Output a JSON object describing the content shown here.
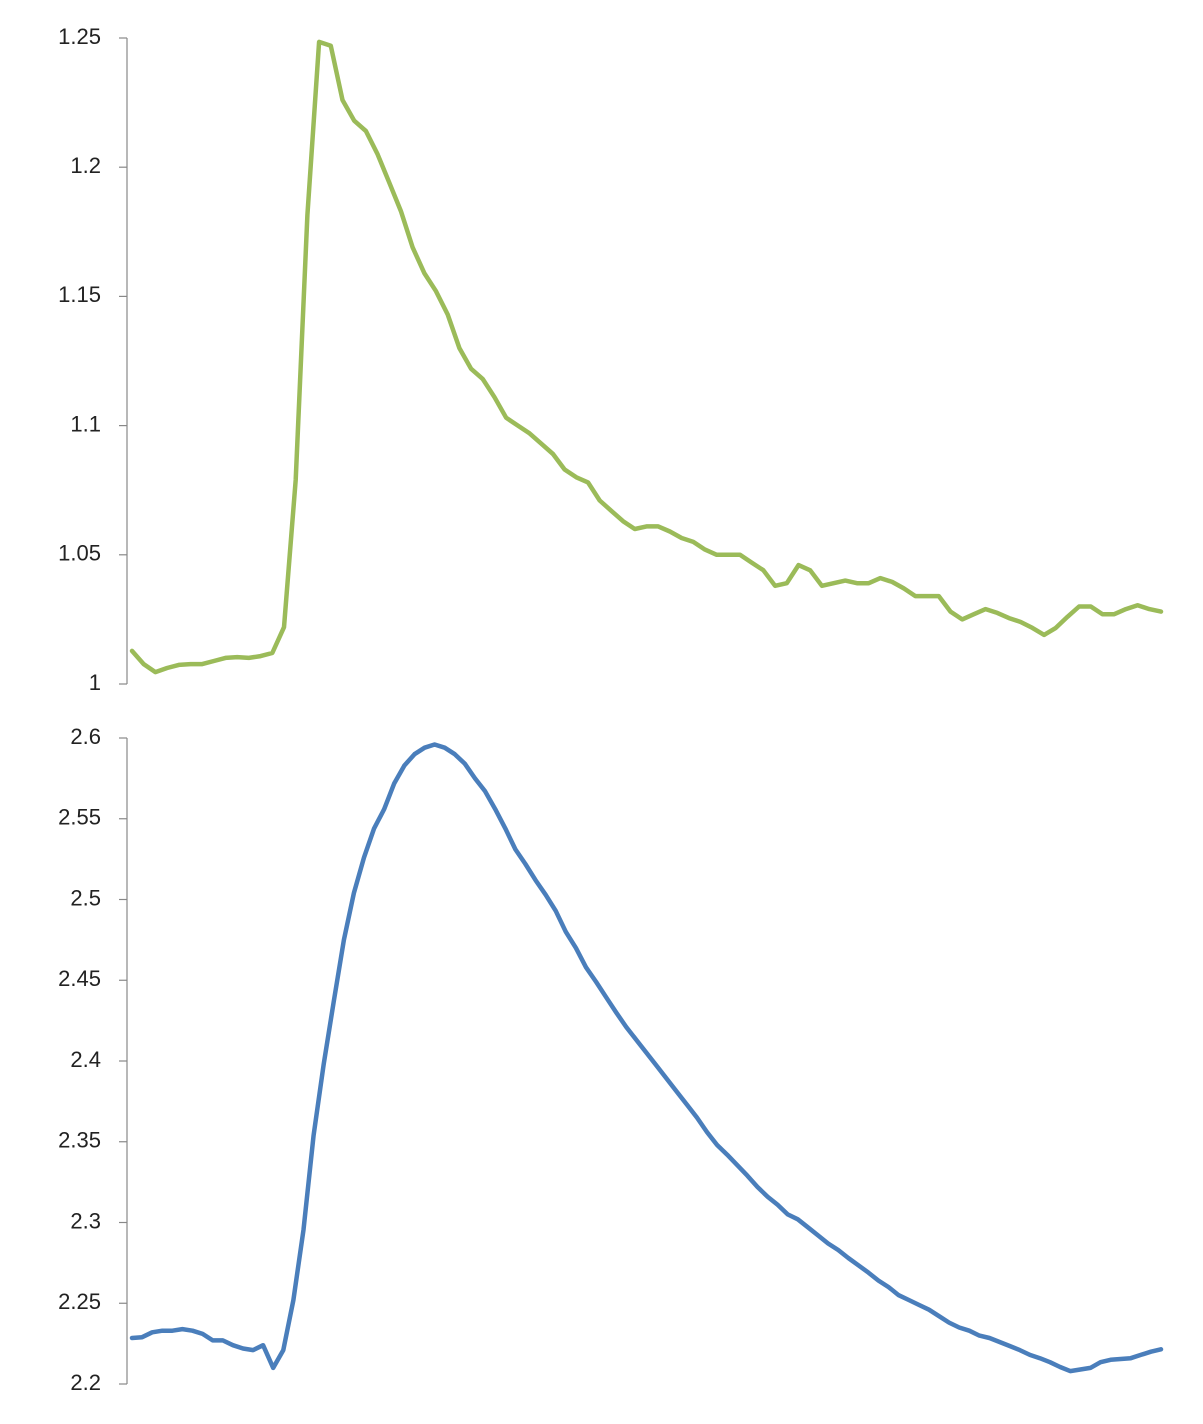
{
  "chart_data": [
    {
      "type": "line",
      "color": "#9bbb59",
      "ylim": [
        1,
        1.25
      ],
      "yticks": [
        1,
        1.05,
        1.1,
        1.15,
        1.2,
        1.25
      ],
      "values": [
        1.0128,
        1.0077,
        1.0046,
        1.0062,
        1.0074,
        1.0077,
        1.0077,
        1.0089,
        1.0101,
        1.0104,
        1.0101,
        1.0108,
        1.012,
        1.022,
        1.079,
        1.1815,
        1.2485,
        1.247,
        1.226,
        1.218,
        1.214,
        1.205,
        1.194,
        1.183,
        1.169,
        1.159,
        1.152,
        1.143,
        1.13,
        1.122,
        1.118,
        1.111,
        1.103,
        1.1,
        1.097,
        1.093,
        1.089,
        1.083,
        1.08,
        1.078,
        1.071,
        1.067,
        1.063,
        1.06,
        1.061,
        1.061,
        1.059,
        1.0565,
        1.055,
        1.052,
        1.05,
        1.05,
        1.05,
        1.047,
        1.044,
        1.038,
        1.039,
        1.046,
        1.044,
        1.038,
        1.039,
        1.04,
        1.039,
        1.039,
        1.041,
        1.0395,
        1.037,
        1.034,
        1.034,
        1.034,
        1.028,
        1.025,
        1.027,
        1.029,
        1.0275,
        1.0255,
        1.024,
        1.0217,
        1.019,
        1.0217,
        1.026,
        1.03,
        1.03,
        1.027,
        1.027,
        1.029,
        1.0305,
        1.029,
        1.028
      ]
    },
    {
      "type": "line",
      "color": "#4a7ebb",
      "ylim": [
        2.2,
        2.6
      ],
      "yticks": [
        2.2,
        2.25,
        2.3,
        2.35,
        2.4,
        2.45,
        2.5,
        2.55,
        2.6
      ],
      "values": [
        2.2285,
        2.229,
        2.232,
        2.233,
        2.233,
        2.234,
        2.233,
        2.231,
        2.227,
        2.227,
        2.224,
        2.222,
        2.221,
        2.224,
        2.21,
        2.221,
        2.252,
        2.2955,
        2.354,
        2.398,
        2.437,
        2.475,
        2.504,
        2.526,
        2.544,
        2.556,
        2.572,
        2.583,
        2.59,
        2.594,
        2.596,
        2.594,
        2.59,
        2.584,
        2.575,
        2.567,
        2.556,
        2.544,
        2.531,
        2.522,
        2.512,
        2.503,
        2.493,
        2.48,
        2.47,
        2.458,
        2.449,
        2.4395,
        2.43,
        2.421,
        2.413,
        2.405,
        2.397,
        2.389,
        2.381,
        2.373,
        2.365,
        2.356,
        2.348,
        2.342,
        2.3355,
        2.329,
        2.322,
        2.316,
        2.311,
        2.305,
        2.302,
        2.297,
        2.292,
        2.287,
        2.283,
        2.278,
        2.2735,
        2.269,
        2.264,
        2.26,
        2.255,
        2.252,
        2.249,
        2.246,
        2.242,
        2.238,
        2.235,
        2.233,
        2.23,
        2.2285,
        2.226,
        2.2235,
        2.221,
        2.218,
        2.216,
        2.2135,
        2.2105,
        2.208,
        2.209,
        2.21,
        2.2135,
        2.215,
        2.2155,
        2.216,
        2.218,
        2.22,
        2.2215
      ]
    }
  ]
}
